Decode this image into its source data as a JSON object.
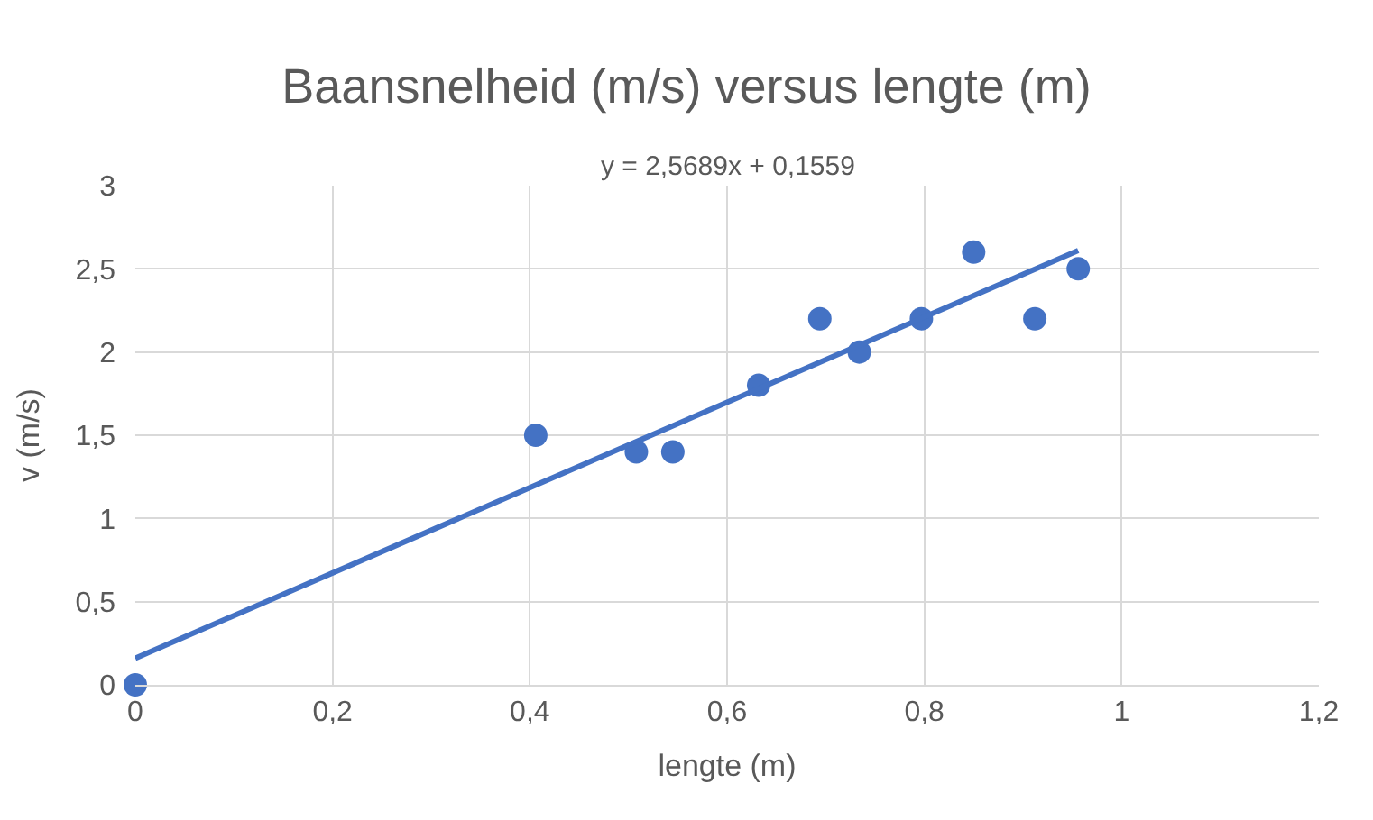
{
  "chart_data": {
    "type": "scatter",
    "title": "Baansnelheid (m/s) versus lengte (m)",
    "xlabel": "lengte (m)",
    "ylabel": "v (m/s)",
    "annotations": [
      "y = 2,5689x + 0,1559"
    ],
    "series": [
      {
        "color": "#4472c4",
        "marker": "circle",
        "x": [
          0,
          0.406,
          0.508,
          0.545,
          0.632,
          0.694,
          0.734,
          0.797,
          0.85,
          0.912,
          0.956
        ],
        "values": [
          0,
          1.5,
          1.4,
          1.4,
          1.8,
          2.2,
          2.0,
          2.2,
          2.6,
          2.2,
          2.5
        ]
      },
      {
        "type": "line",
        "color": "#4472c4",
        "line_style": "solid",
        "x": [
          0,
          0.956
        ],
        "values": [
          0.16,
          2.61
        ]
      }
    ],
    "xlim": [
      0,
      1.2
    ],
    "xticks": [
      0,
      {
        "value": 0.2,
        "label": "0,2"
      },
      {
        "value": 0.4,
        "label": "0,4"
      },
      {
        "value": 0.6,
        "label": "0,6"
      },
      {
        "value": 0.8,
        "label": "0,8"
      },
      1,
      {
        "value": 1.2,
        "label": "1,2"
      }
    ],
    "ylim": [
      0,
      3
    ],
    "yticks": [
      0,
      {
        "value": 0.5,
        "label": "0,5"
      },
      1,
      {
        "value": 1.5,
        "label": "1,5"
      },
      2,
      {
        "value": 2.5,
        "label": "2,5"
      },
      3
    ],
    "grid": true
  }
}
